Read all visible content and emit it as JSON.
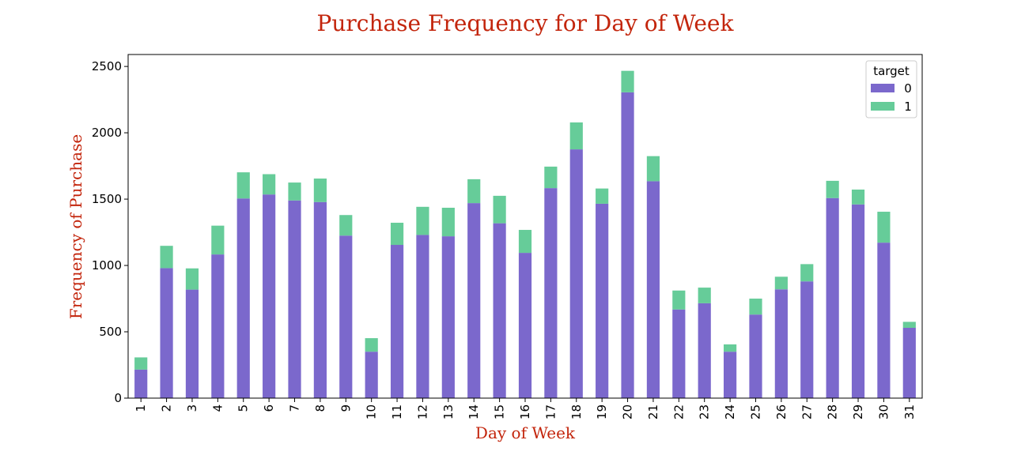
{
  "chart_data": {
    "type": "bar",
    "stacked": true,
    "title": "Purchase Frequency for Day of Week",
    "xlabel": "Day of Week",
    "ylabel": "Frequency of Purchase",
    "categories": [
      "1",
      "2",
      "3",
      "4",
      "5",
      "6",
      "7",
      "8",
      "9",
      "10",
      "11",
      "12",
      "13",
      "14",
      "15",
      "16",
      "17",
      "18",
      "19",
      "20",
      "21",
      "22",
      "23",
      "24",
      "25",
      "26",
      "27",
      "28",
      "29",
      "30",
      "31"
    ],
    "series": [
      {
        "name": "0",
        "color": "#7b68cc",
        "values": [
          215,
          980,
          818,
          1083,
          1505,
          1535,
          1490,
          1478,
          1225,
          350,
          1155,
          1230,
          1220,
          1470,
          1318,
          1095,
          1583,
          1875,
          1465,
          2305,
          1635,
          668,
          715,
          350,
          630,
          820,
          880,
          1508,
          1460,
          1172,
          530
        ]
      },
      {
        "name": "1",
        "color": "#66cc99",
        "values": [
          92,
          168,
          160,
          217,
          197,
          153,
          135,
          177,
          155,
          102,
          167,
          212,
          215,
          180,
          207,
          173,
          162,
          203,
          115,
          162,
          189,
          143,
          118,
          55,
          120,
          95,
          130,
          130,
          112,
          233,
          45
        ]
      }
    ],
    "ylim": [
      0,
      2590
    ],
    "yticks": [
      "0",
      "500",
      "1000",
      "1500",
      "2000",
      "2500"
    ],
    "grid": false,
    "legend": {
      "title": "target",
      "position": "top-right",
      "entries": [
        "0",
        "1"
      ]
    }
  }
}
